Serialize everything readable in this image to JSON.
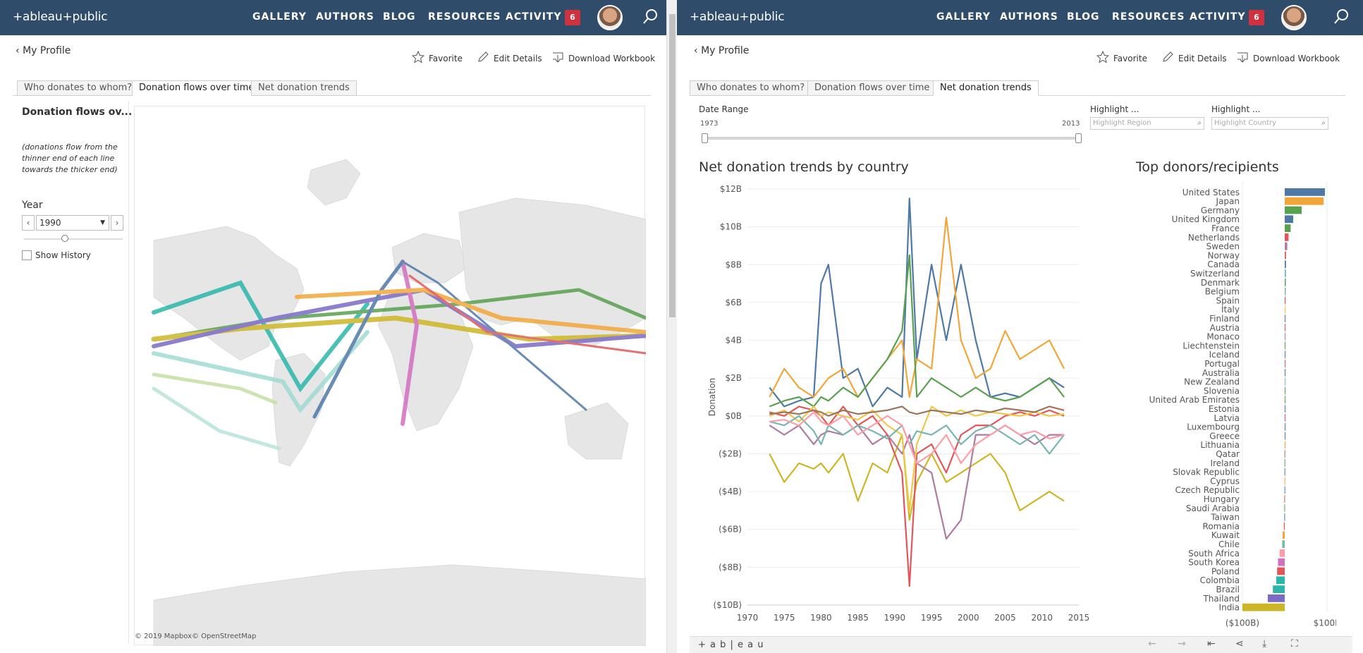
{
  "nav": {
    "logo": "+ableau+public",
    "items": [
      "GALLERY",
      "AUTHORS",
      "BLOG",
      "RESOURCES",
      "ACTIVITY"
    ],
    "badge": "6"
  },
  "profile": {
    "back": "My Profile",
    "favorite": "Favorite",
    "edit": "Edit Details",
    "download": "Download Workbook"
  },
  "tabs": [
    "Who donates to whom?",
    "Donation flows over time",
    "Net donation trends"
  ],
  "left": {
    "title": "Donation flows ov...",
    "note": [
      "(donations flow from the",
      "thinner end of each line",
      "towards the thicker end)"
    ],
    "year_label": "Year",
    "year_value": "1990",
    "show_history": "Show History",
    "copyright": "© 2019 Mapbox© OpenStreetMap"
  },
  "right": {
    "date_range_label": "Date Range",
    "date_start": "1973",
    "date_end": "2013",
    "highlight1_label": "Highlight ...",
    "highlight1_placeholder": "Highlight Region",
    "highlight2_label": "Highlight ...",
    "highlight2_placeholder": "Highlight Country",
    "footer_logo": "+ a b | e a u"
  },
  "chart_data": [
    {
      "type": "line",
      "title": "Net donation trends by country",
      "ylabel": "Donation",
      "xlabel": "",
      "y_tick_labels": [
        "$12B",
        "$10B",
        "$8B",
        "$6B",
        "$4B",
        "$2B",
        "$0B",
        "($2B)",
        "($4B)",
        "($6B)",
        "($8B)",
        "($10B)"
      ],
      "x_tick_labels": [
        "1970",
        "1975",
        "1980",
        "1985",
        "1990",
        "1995",
        "2000",
        "2005",
        "2010",
        "2015"
      ],
      "ylim": [
        -10,
        12
      ],
      "xlim": [
        1970,
        2015
      ],
      "grid": true,
      "x": [
        1973,
        1975,
        1977,
        1979,
        1980,
        1981,
        1983,
        1985,
        1987,
        1989,
        1991,
        1992,
        1993,
        1995,
        1997,
        1999,
        2001,
        2003,
        2005,
        2007,
        2009,
        2011,
        2013
      ],
      "series": [
        {
          "color": "#4e79a7",
          "values": [
            1.5,
            0.5,
            0.8,
            1.0,
            7.0,
            8.0,
            2.0,
            2.5,
            0.5,
            1.5,
            1.0,
            11.5,
            3.0,
            8.0,
            4.0,
            8.0,
            4.0,
            1.0,
            1.2,
            1.0,
            1.5,
            2.0,
            1.5
          ]
        },
        {
          "color": "#f2a63a",
          "values": [
            1.0,
            2.5,
            1.5,
            1.0,
            1.5,
            2.0,
            2.5,
            1.0,
            2.0,
            3.0,
            4.0,
            1.0,
            3.0,
            2.5,
            10.5,
            4.0,
            2.0,
            2.5,
            4.5,
            3.0,
            3.5,
            4.0,
            2.5
          ]
        },
        {
          "color": "#59a14f",
          "values": [
            0.5,
            0.8,
            1.0,
            0.5,
            1.0,
            0.8,
            1.5,
            1.0,
            2.0,
            3.0,
            4.5,
            8.5,
            1.0,
            2.0,
            1.5,
            1.0,
            1.5,
            1.0,
            0.8,
            1.0,
            1.5,
            2.0,
            1.0
          ]
        },
        {
          "color": "#cdb626",
          "values": [
            -2.0,
            -3.5,
            -2.5,
            -2.8,
            -2.5,
            -3.0,
            -2.0,
            -4.5,
            -2.5,
            -3.0,
            -1.0,
            -5.5,
            -3.5,
            -2.0,
            -3.5,
            -3.0,
            -2.5,
            -2.0,
            -3.0,
            -5.0,
            -4.5,
            -4.0,
            -4.5
          ]
        },
        {
          "color": "#b07aa1",
          "values": [
            -0.5,
            -1.0,
            -0.5,
            -1.5,
            -1.0,
            -0.8,
            -1.0,
            -0.5,
            -1.5,
            -1.0,
            -2.0,
            -1.0,
            -2.5,
            -3.0,
            -6.5,
            -5.5,
            -1.0,
            -1.0,
            -0.5,
            -1.0,
            -1.5,
            -1.0,
            -1.0
          ]
        },
        {
          "color": "#e15759",
          "values": [
            0.2,
            0.0,
            0.5,
            0.3,
            0.0,
            -0.5,
            0.5,
            -0.5,
            0.0,
            -1.0,
            -3.0,
            -9.0,
            -2.0,
            -1.5,
            -3.0,
            -1.0,
            -0.5,
            -0.5,
            0.0,
            0.2,
            0.0,
            0.3,
            0.0
          ]
        },
        {
          "color": "#edc948",
          "values": [
            0.0,
            0.3,
            -0.3,
            0.5,
            0.0,
            0.2,
            0.0,
            -0.2,
            0.3,
            -0.5,
            -1.0,
            -5.0,
            -1.5,
            0.5,
            0.0,
            0.3,
            0.0,
            0.2,
            0.1,
            0.0,
            0.2,
            0.0,
            0.1
          ]
        },
        {
          "color": "#76b7b2",
          "values": [
            -0.3,
            -0.5,
            0.0,
            -0.8,
            -1.5,
            -0.5,
            -1.0,
            -0.5,
            -0.8,
            -1.2,
            -0.5,
            -1.5,
            -0.8,
            -1.0,
            -0.5,
            -1.5,
            -0.8,
            -0.5,
            -1.0,
            -1.5,
            -1.0,
            -2.0,
            -1.0
          ]
        },
        {
          "color": "#ff9da7",
          "values": [
            -0.3,
            -0.2,
            -0.5,
            0.2,
            -0.3,
            -0.5,
            0.0,
            -1.0,
            -0.5,
            0.0,
            -0.5,
            -1.5,
            -2.5,
            -2.0,
            -1.0,
            -2.5,
            -1.5,
            -1.0,
            -0.5,
            -1.0,
            -0.8,
            -1.2,
            -1.0
          ]
        },
        {
          "color": "#9c755f",
          "values": [
            0.1,
            0.2,
            0.1,
            0.3,
            0.2,
            0.0,
            0.3,
            0.1,
            0.2,
            0.3,
            0.5,
            0.2,
            0.1,
            0.3,
            0.2,
            0.1,
            0.3,
            0.2,
            0.4,
            0.3,
            0.2,
            0.5,
            0.3
          ]
        }
      ]
    },
    {
      "type": "bar",
      "title": "Top donors/recipients",
      "x_tick_labels": [
        "($100B)",
        "$100B"
      ],
      "xlim": [
        -100,
        100
      ],
      "categories": [
        "United States",
        "Japan",
        "Germany",
        "United Kingdom",
        "France",
        "Netherlands",
        "Sweden",
        "Norway",
        "Canada",
        "Switzerland",
        "Denmark",
        "Belgium",
        "Spain",
        "Italy",
        "Finland",
        "Austria",
        "Monaco",
        "Liechtenstein",
        "Iceland",
        "Portugal",
        "Australia",
        "New Zealand",
        "Slovenia",
        "United Arab Emirates",
        "Estonia",
        "Latvia",
        "Luxembourg",
        "Greece",
        "Lithuania",
        "Qatar",
        "Ireland",
        "Slovak Republic",
        "Cyprus",
        "Czech Republic",
        "Hungary",
        "Saudi Arabia",
        "Taiwan",
        "Romania",
        "Kuwait",
        "Chile",
        "South Africa",
        "South Korea",
        "Poland",
        "Colombia",
        "Brazil",
        "Thailand",
        "India"
      ],
      "values": [
        95,
        92,
        40,
        20,
        14,
        9,
        6,
        3,
        3,
        3,
        2.5,
        2.5,
        2,
        2,
        1.5,
        1.5,
        1,
        1,
        1,
        1,
        1,
        1,
        1,
        0.5,
        0.5,
        0.5,
        0.5,
        0.5,
        0.5,
        -0.5,
        -0.5,
        -0.5,
        -0.5,
        -0.5,
        -1,
        -1,
        -1,
        -2,
        -5,
        -6,
        -12,
        -16,
        -18,
        -20,
        -28,
        -40,
        -100
      ],
      "colors": [
        "#4e79a7",
        "#f2a63a",
        "#59a14f",
        "#4e79a7",
        "#59a14f",
        "#e15759",
        "#b07aa1",
        "#e15759",
        "#4e79a7",
        "#76b7b2",
        "#59a14f",
        "#76b7b2",
        "#e15759",
        "#edc948",
        "#4e79a7",
        "#e15759",
        "#b07aa1",
        "#59a14f",
        "#4e79a7",
        "#e15759",
        "#4e79a7",
        "#76b7b2",
        "#59a14f",
        "#59a14f",
        "#4e79a7",
        "#e15759",
        "#4e79a7",
        "#4e79a7",
        "#f2a63a",
        "#9c755f",
        "#59a14f",
        "#4e79a7",
        "#f2a63a",
        "#4e79a7",
        "#e15759",
        "#59a14f",
        "#4e79a7",
        "#e15759",
        "#f2a63a",
        "#76b7b2",
        "#ff9da7",
        "#d36fbf",
        "#e15759",
        "#2ab7a9",
        "#2ab7a9",
        "#7b6bc4",
        "#cdb626"
      ]
    }
  ]
}
